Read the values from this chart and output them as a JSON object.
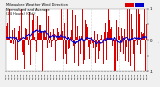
{
  "n_points": 288,
  "y_min": -1.0,
  "y_max": 1.0,
  "bar_color": "#dd0000",
  "line_color": "#0000cc",
  "background_color": "#f0f0f0",
  "plot_bg_color": "#ffffff",
  "grid_color": "#aaaaaa",
  "seed": 42,
  "noise_scale": 0.6,
  "mean_scale": 0.15,
  "avg_window": 30,
  "n_gridlines": 4,
  "figsize": [
    1.6,
    0.87
  ],
  "dpi": 100
}
